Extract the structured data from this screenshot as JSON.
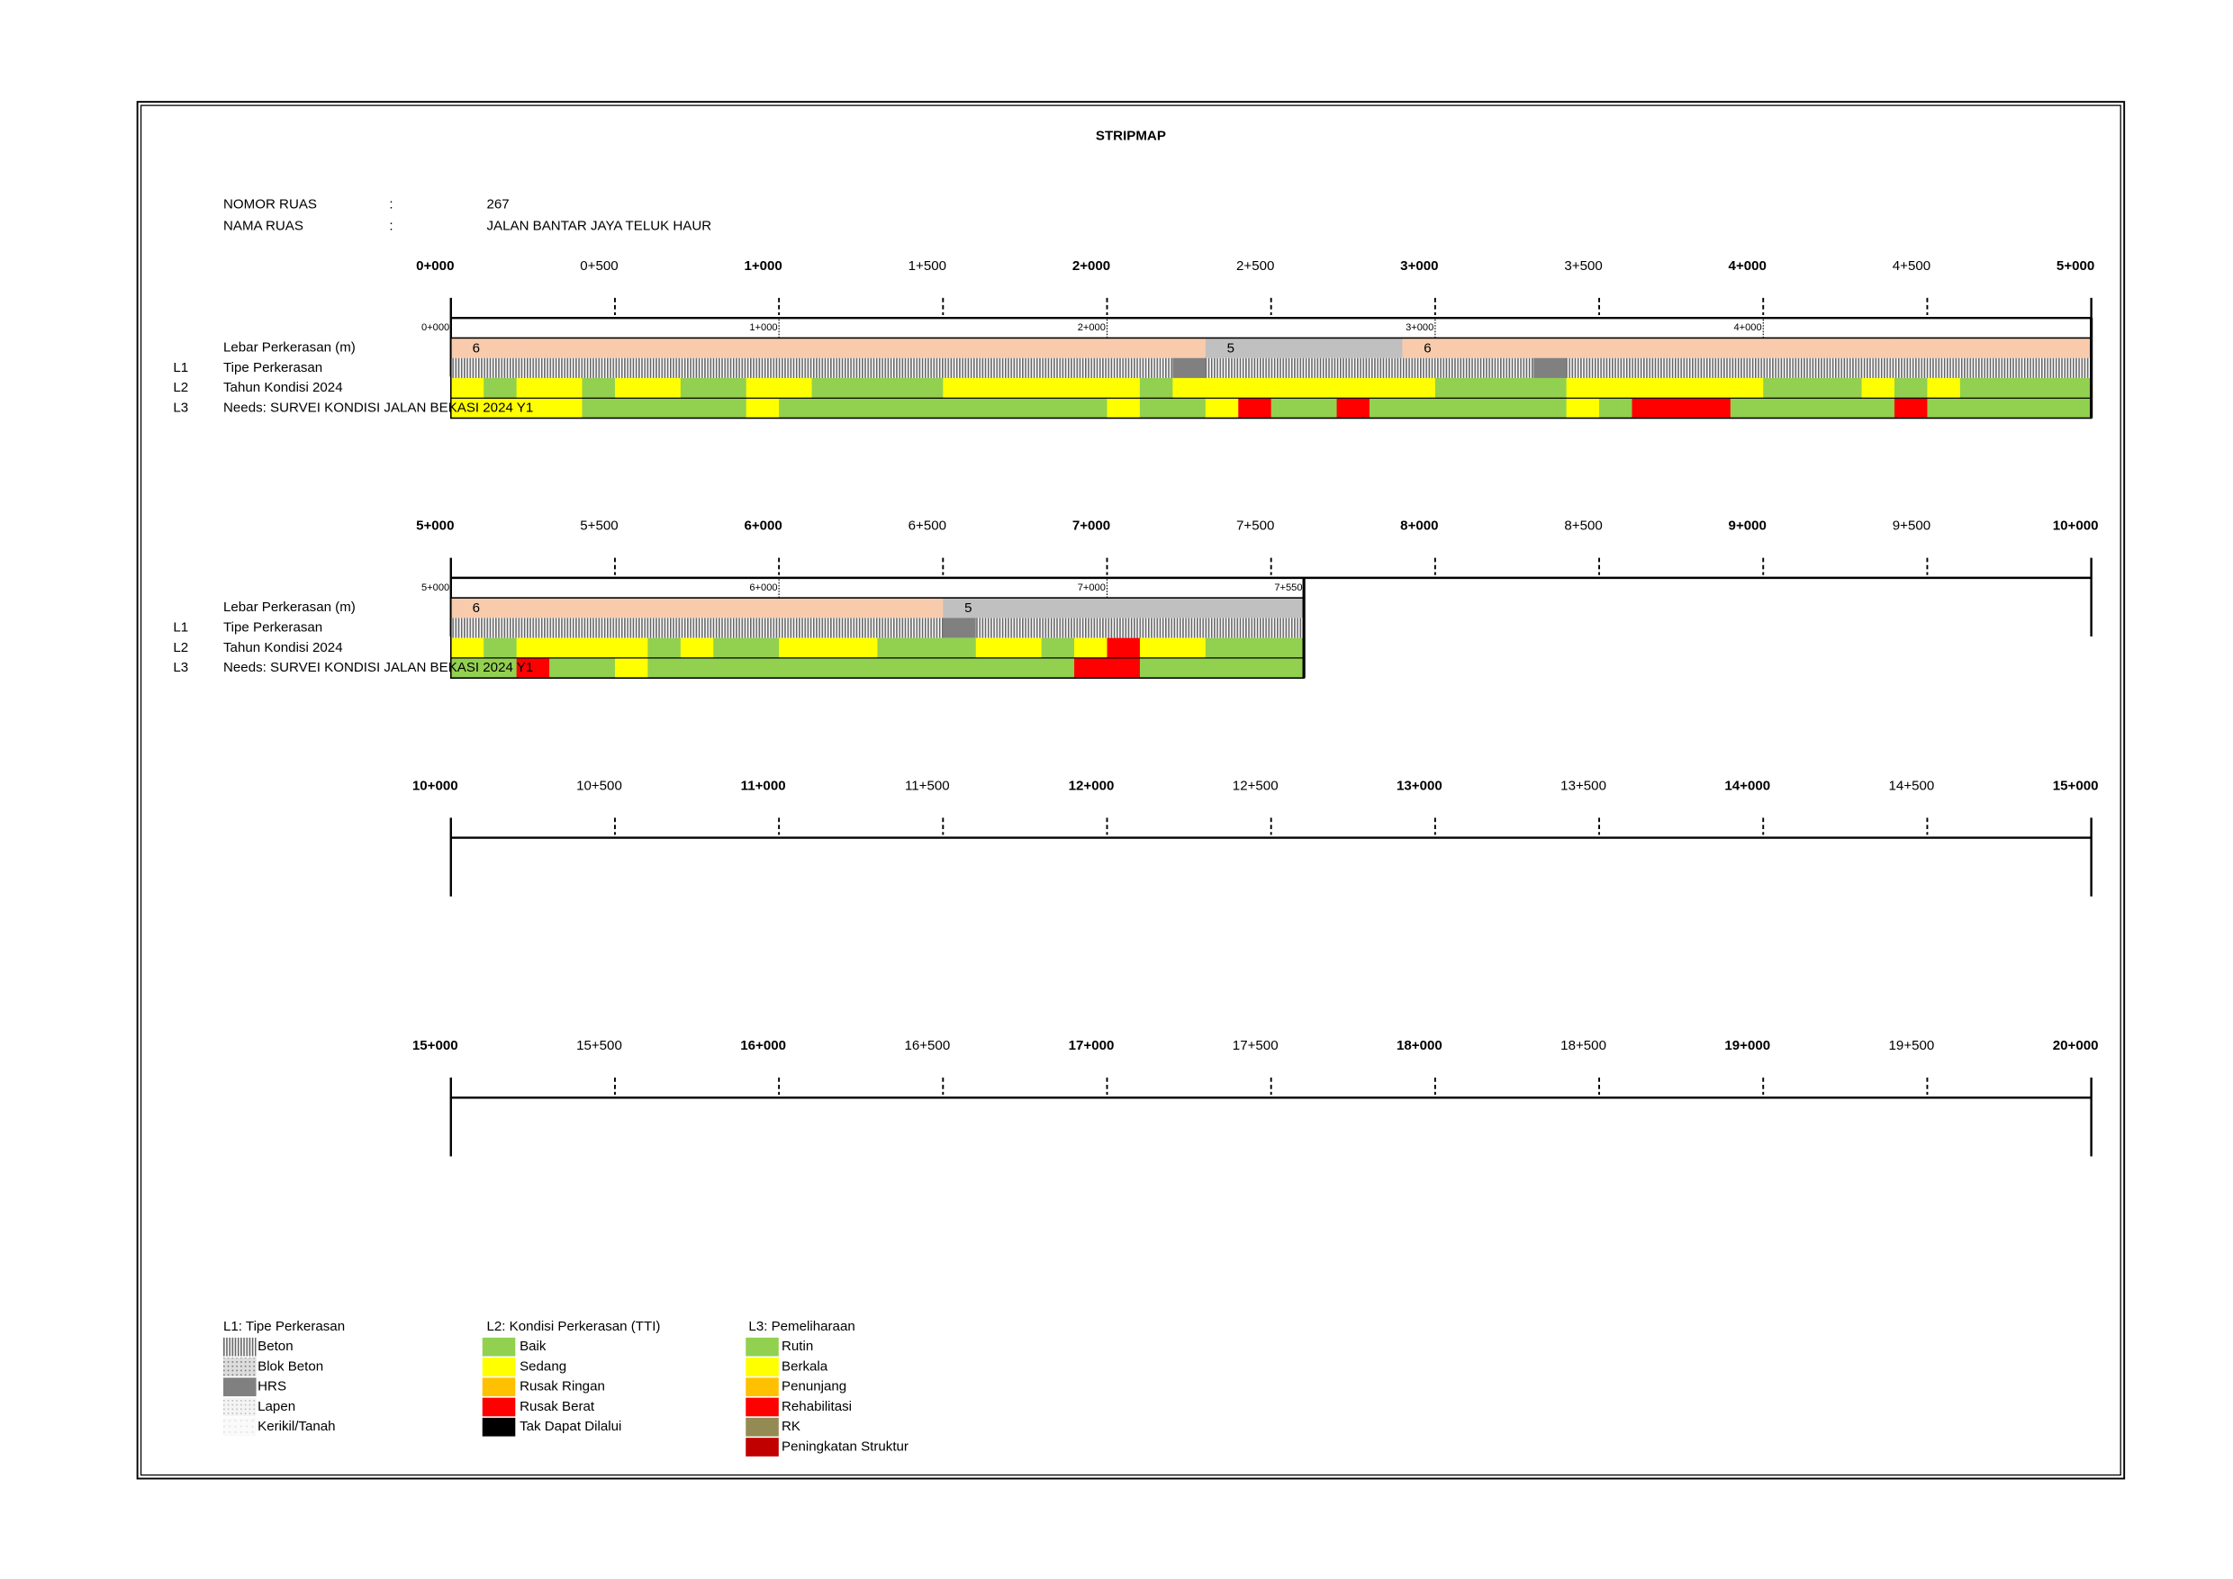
{
  "title": "STRIPMAP",
  "info": [
    {
      "label": "NOMOR RUAS",
      "sep": ":",
      "value": "267"
    },
    {
      "label": "NAMA RUAS",
      "sep": ":",
      "value": "JALAN BANTAR JAYA TELUK HAUR"
    }
  ],
  "rows": [
    {
      "label": "Lebar Perkerasan (m)"
    },
    {
      "code": "L1",
      "label": "Tipe Perkerasan"
    },
    {
      "code": "L2",
      "label": "Tahun Kondisi 2024"
    },
    {
      "code": "L3",
      "label": "Needs: SURVEI KONDISI JALAN BEKASI 2024 Y1"
    }
  ],
  "strips": [
    {
      "ticks": [
        "0+000",
        "0+500",
        "1+000",
        "1+500",
        "2+000",
        "2+500",
        "3+000",
        "3+500",
        "4+000",
        "4+500",
        "5+000"
      ],
      "sta": [
        "0+000",
        "1+000",
        "2+000",
        "3+000",
        "4+000"
      ],
      "width": [
        6,
        6,
        6,
        6,
        6,
        6,
        6,
        6,
        6,
        6,
        6,
        6,
        6,
        6,
        6,
        6,
        6,
        6,
        6,
        6,
        6,
        6,
        6,
        5,
        5,
        5,
        5,
        5,
        5,
        6,
        6,
        6,
        6,
        6,
        6,
        6,
        6,
        6,
        6,
        6,
        6,
        6,
        6,
        6,
        6,
        6,
        6,
        6,
        6,
        6
      ],
      "l1": [
        0,
        0,
        0,
        0,
        0,
        0,
        0,
        0,
        0,
        0,
        0,
        0,
        0,
        0,
        0,
        0,
        0,
        0,
        0,
        0,
        0,
        0,
        2,
        0,
        0,
        0,
        0,
        0,
        0,
        0,
        0,
        0,
        0,
        2,
        0,
        0,
        0,
        0,
        0,
        0,
        0,
        0,
        0,
        0,
        0,
        0,
        0,
        0,
        0,
        0
      ],
      "l2": [
        1,
        0,
        1,
        1,
        0,
        1,
        1,
        0,
        0,
        1,
        1,
        0,
        0,
        0,
        0,
        1,
        1,
        1,
        1,
        1,
        1,
        0,
        1,
        1,
        1,
        1,
        1,
        1,
        1,
        1,
        0,
        0,
        0,
        0,
        1,
        1,
        1,
        1,
        1,
        1,
        0,
        0,
        0,
        1,
        0,
        1,
        0,
        0,
        0,
        0
      ],
      "l3": [
        1,
        1,
        1,
        1,
        0,
        0,
        0,
        0,
        0,
        1,
        0,
        0,
        0,
        0,
        0,
        0,
        0,
        0,
        0,
        0,
        1,
        0,
        0,
        1,
        3,
        0,
        0,
        3,
        0,
        0,
        0,
        0,
        0,
        0,
        1,
        0,
        3,
        3,
        3,
        0,
        0,
        0,
        0,
        0,
        3,
        0,
        0,
        0,
        0,
        0
      ]
    },
    {
      "ticks": [
        "5+000",
        "5+500",
        "6+000",
        "6+500",
        "7+000",
        "7+500",
        "8+000",
        "8+500",
        "9+000",
        "9+500",
        "10+000"
      ],
      "sta": [
        "5+000",
        "6+000",
        "7+000",
        "7+550"
      ],
      "width": [
        6,
        6,
        6,
        6,
        6,
        6,
        6,
        6,
        6,
        6,
        6,
        6,
        6,
        6,
        6,
        5,
        5,
        5,
        5,
        5,
        5,
        5,
        5,
        5,
        5,
        5
      ],
      "l1": [
        0,
        0,
        0,
        0,
        0,
        0,
        0,
        0,
        0,
        0,
        0,
        0,
        0,
        0,
        0,
        2,
        0,
        0,
        0,
        0,
        0,
        0,
        0,
        0,
        0,
        0
      ],
      "l2": [
        1,
        0,
        1,
        1,
        1,
        1,
        0,
        1,
        0,
        0,
        1,
        1,
        1,
        0,
        0,
        0,
        1,
        1,
        0,
        1,
        3,
        1,
        1,
        0,
        0,
        0
      ],
      "l3": [
        0,
        0,
        3,
        0,
        0,
        1,
        0,
        0,
        0,
        0,
        0,
        0,
        0,
        0,
        0,
        0,
        0,
        0,
        0,
        3,
        3,
        0,
        0,
        0,
        0,
        0
      ]
    },
    {
      "ticks": [
        "10+000",
        "10+500",
        "11+000",
        "11+500",
        "12+000",
        "12+500",
        "13+000",
        "13+500",
        "14+000",
        "14+500",
        "15+000"
      ]
    },
    {
      "ticks": [
        "15+000",
        "15+500",
        "16+000",
        "16+500",
        "17+000",
        "17+500",
        "18+000",
        "18+500",
        "19+000",
        "19+500",
        "20+000"
      ]
    }
  ],
  "width_colors": {
    "5": "#c0c0c0",
    "6": "#f8cbad"
  },
  "legend": [
    {
      "title": "L1: Tipe Perkerasan",
      "items": [
        {
          "label": "Beton",
          "color": "beton"
        },
        {
          "label": "Blok Beton",
          "color": "blok"
        },
        {
          "label": "HRS",
          "color": "#808080"
        },
        {
          "label": "Lapen",
          "color": "lapen"
        },
        {
          "label": "Kerikil/Tanah",
          "color": "kerikil"
        }
      ]
    },
    {
      "title": "L2: Kondisi Perkerasan (TTI)",
      "items": [
        {
          "label": "Baik",
          "color": "#92d050"
        },
        {
          "label": "Sedang",
          "color": "#ffff00"
        },
        {
          "label": "Rusak Ringan",
          "color": "#ffc000"
        },
        {
          "label": "Rusak Berat",
          "color": "#ff0000"
        },
        {
          "label": "Tak Dapat Dilalui",
          "color": "#000000"
        }
      ]
    },
    {
      "title": "L3: Pemeliharaan",
      "items": [
        {
          "label": "Rutin",
          "color": "#92d050"
        },
        {
          "label": "Berkala",
          "color": "#ffff00"
        },
        {
          "label": "Penunjang",
          "color": "#ffc000"
        },
        {
          "label": "Rehabilitasi",
          "color": "#ff0000"
        },
        {
          "label": "RK",
          "color": "#948a54"
        },
        {
          "label": "Peningkatan Struktur",
          "color": "#c00000"
        }
      ]
    }
  ]
}
